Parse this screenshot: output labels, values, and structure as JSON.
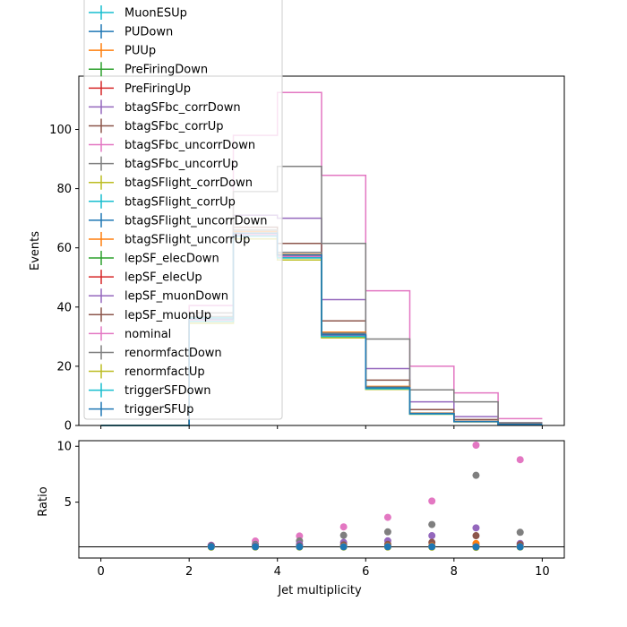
{
  "chart_data": [
    {
      "type": "step",
      "panel": "main",
      "ylabel": "Events",
      "xlim": [
        -0.5,
        10.5
      ],
      "ylim": [
        0,
        118
      ],
      "yticks": [
        0,
        20,
        40,
        60,
        80,
        100
      ],
      "bin_edges": [
        0,
        1,
        2,
        3,
        4,
        5,
        6,
        7,
        8,
        9,
        10
      ],
      "legend_location": "upper-left",
      "series": [
        {
          "name": "MuonESUp",
          "color": "#17becf",
          "values": [
            0,
            0,
            35.6,
            64.5,
            57.0,
            30.2,
            12.5,
            3.9,
            1.3,
            0.4
          ]
        },
        {
          "name": "PUDown",
          "color": "#1f77b4",
          "values": [
            0,
            0,
            35.7,
            64.6,
            57.2,
            30.4,
            12.6,
            4.0,
            1.3,
            0.4
          ]
        },
        {
          "name": "PUUp",
          "color": "#ff7f0e",
          "values": [
            0,
            0,
            35.4,
            64.3,
            56.8,
            30.1,
            12.4,
            3.9,
            1.3,
            0.4
          ]
        },
        {
          "name": "PreFiringDown",
          "color": "#2ca02c",
          "values": [
            0,
            0,
            35.5,
            64.4,
            57.0,
            30.3,
            12.5,
            3.9,
            1.3,
            0.4
          ]
        },
        {
          "name": "PreFiringUp",
          "color": "#d62728",
          "values": [
            0,
            0,
            35.6,
            64.5,
            57.1,
            30.4,
            12.6,
            4.0,
            1.3,
            0.4
          ]
        },
        {
          "name": "btagSFbc_corrDown",
          "color": "#9467bd",
          "values": [
            0,
            0,
            40.5,
            71.0,
            70.0,
            42.5,
            19.2,
            8.0,
            3.0,
            0.9
          ]
        },
        {
          "name": "btagSFbc_corrUp",
          "color": "#8c564b",
          "values": [
            0,
            0,
            38.0,
            67.0,
            61.5,
            35.3,
            15.3,
            5.4,
            2.0,
            0.6
          ]
        },
        {
          "name": "btagSFbc_uncorrDown",
          "color": "#e377c2",
          "values": [
            0,
            0,
            40.5,
            98.0,
            112.5,
            84.5,
            45.5,
            20.0,
            11.0,
            2.3
          ]
        },
        {
          "name": "btagSFbc_uncorrUp",
          "color": "#7f7f7f",
          "values": [
            0,
            0,
            38.0,
            79.0,
            87.5,
            61.5,
            29.2,
            12.0,
            8.0,
            0.9
          ]
        },
        {
          "name": "btagSFlight_corrDown",
          "color": "#bcbd22",
          "values": [
            0,
            0,
            34.5,
            64.0,
            57.0,
            30.3,
            12.4,
            3.9,
            1.3,
            0.4
          ]
        },
        {
          "name": "btagSFlight_corrUp",
          "color": "#17becf",
          "values": [
            0,
            0,
            36.5,
            65.0,
            57.5,
            30.6,
            12.7,
            4.0,
            1.3,
            0.4
          ]
        },
        {
          "name": "btagSFlight_uncorrDown",
          "color": "#1f77b4",
          "values": [
            0,
            0,
            35.2,
            64.0,
            57.2,
            31.0,
            12.8,
            4.0,
            1.3,
            0.4
          ]
        },
        {
          "name": "btagSFlight_uncorrUp",
          "color": "#ff7f0e",
          "values": [
            0,
            0,
            35.8,
            65.5,
            57.8,
            31.5,
            13.2,
            4.2,
            1.4,
            0.4
          ]
        },
        {
          "name": "lepSF_elecDown",
          "color": "#2ca02c",
          "values": [
            0,
            0,
            35.3,
            64.2,
            56.6,
            29.8,
            12.2,
            3.8,
            1.3,
            0.4
          ]
        },
        {
          "name": "lepSF_elecUp",
          "color": "#d62728",
          "values": [
            0,
            0,
            35.9,
            64.8,
            57.4,
            30.6,
            12.8,
            4.0,
            1.3,
            0.4
          ]
        },
        {
          "name": "lepSF_muonDown",
          "color": "#9467bd",
          "values": [
            0,
            0,
            35.4,
            64.3,
            56.9,
            30.0,
            12.4,
            3.9,
            1.3,
            0.4
          ]
        },
        {
          "name": "lepSF_muonUp",
          "color": "#8c564b",
          "values": [
            0,
            0,
            35.8,
            64.7,
            57.3,
            30.5,
            12.7,
            4.0,
            1.3,
            0.4
          ]
        },
        {
          "name": "nominal",
          "color": "#e377c2",
          "values": [
            0,
            0,
            35.6,
            64.5,
            57.1,
            30.3,
            12.5,
            3.9,
            1.3,
            0.4
          ]
        },
        {
          "name": "renormfactDown",
          "color": "#7f7f7f",
          "values": [
            0,
            0,
            36.8,
            66.0,
            58.5,
            31.2,
            13.0,
            4.1,
            1.4,
            0.4
          ]
        },
        {
          "name": "renormfactUp",
          "color": "#bcbd22",
          "values": [
            0,
            0,
            34.6,
            63.0,
            55.9,
            29.6,
            12.2,
            3.8,
            1.2,
            0.4
          ]
        },
        {
          "name": "triggerSFDown",
          "color": "#17becf",
          "values": [
            0,
            0,
            35.2,
            64.0,
            56.6,
            30.0,
            12.4,
            3.9,
            1.3,
            0.4
          ]
        },
        {
          "name": "triggerSFUp",
          "color": "#1f77b4",
          "values": [
            0,
            0,
            36.0,
            65.0,
            57.6,
            30.6,
            12.7,
            4.0,
            1.3,
            0.4
          ]
        }
      ]
    },
    {
      "type": "scatter",
      "panel": "ratio",
      "xlabel": "Jet multiplicity",
      "ylabel": "Ratio",
      "xlim": [
        -0.5,
        10.5
      ],
      "ylim": [
        0,
        10.5
      ],
      "xticks": [
        0,
        2,
        4,
        6,
        8,
        10
      ],
      "yticks": [
        5,
        10
      ],
      "reference_line": 1,
      "x": [
        2.5,
        3.5,
        4.5,
        5.5,
        6.5,
        7.5,
        8.5,
        9.5
      ],
      "series": [
        {
          "name": "btagSFbc_uncorrDown",
          "color": "#e377c2",
          "values": [
            1.14,
            1.52,
            1.97,
            2.79,
            3.64,
            5.1,
            10.1,
            8.8
          ]
        },
        {
          "name": "btagSFbc_uncorrUp",
          "color": "#7f7f7f",
          "values": [
            1.07,
            1.22,
            1.53,
            2.03,
            2.34,
            3.0,
            7.4,
            2.3
          ]
        },
        {
          "name": "btagSFbc_corrDown",
          "color": "#9467bd",
          "values": [
            1.14,
            1.1,
            1.23,
            1.4,
            1.54,
            2.0,
            2.7,
            1.3
          ]
        },
        {
          "name": "btagSFbc_corrUp",
          "color": "#8c564b",
          "values": [
            1.07,
            1.04,
            1.08,
            1.17,
            1.22,
            1.4,
            2.0,
            1.2
          ]
        },
        {
          "name": "renormfactDown",
          "color": "#7f7f7f",
          "values": [
            1.03,
            1.02,
            1.02,
            1.03,
            1.04,
            1.05,
            1.1,
            1.0
          ]
        },
        {
          "name": "btagSFlight_uncorrUp",
          "color": "#ff7f0e",
          "values": [
            1.01,
            1.02,
            1.01,
            1.04,
            1.06,
            1.08,
            1.3,
            1.0
          ]
        },
        {
          "name": "nominal",
          "color": "#e377c2",
          "values": [
            1.0,
            1.0,
            1.0,
            1.0,
            1.0,
            1.0,
            1.0,
            1.0
          ]
        },
        {
          "name": "renormfactUp",
          "color": "#bcbd22",
          "values": [
            0.97,
            0.98,
            0.98,
            0.98,
            0.98,
            0.97,
            0.95,
            0.98
          ]
        },
        {
          "name": "triggerSFUp",
          "color": "#1f77b4",
          "values": [
            1.01,
            1.01,
            1.01,
            1.01,
            1.02,
            1.02,
            1.0,
            1.0
          ]
        }
      ]
    }
  ]
}
